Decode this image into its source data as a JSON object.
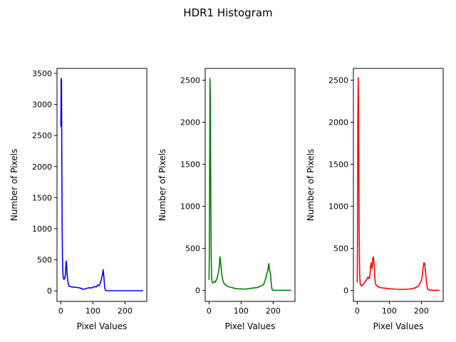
{
  "figure": {
    "title": "HDR1 Histogram"
  },
  "chart_data": [
    {
      "type": "line",
      "xlabel": "Pixel Values",
      "ylabel": "Number of Pixels",
      "xlim": [
        -12,
        268
      ],
      "ylim": [
        -170,
        3580
      ],
      "xticks": [
        0,
        100,
        200
      ],
      "yticks": [
        0,
        500,
        1000,
        1500,
        2000,
        2500,
        3000,
        3500
      ],
      "grid": false,
      "color": "#0000ff",
      "series": [
        {
          "x": [
            0,
            1,
            2,
            3,
            4,
            5,
            6,
            7,
            8,
            10,
            12,
            14,
            16,
            17,
            18,
            19,
            20,
            22,
            24,
            26,
            28,
            30,
            32,
            35,
            40,
            45,
            50,
            55,
            60,
            65,
            70,
            75,
            80,
            85,
            90,
            95,
            100,
            105,
            110,
            115,
            118,
            121,
            124,
            127,
            130,
            132,
            134,
            136,
            138,
            140,
            145,
            150,
            160,
            180,
            200,
            220,
            240,
            255
          ],
          "y": [
            2650,
            3420,
            3380,
            2200,
            1100,
            560,
            340,
            240,
            200,
            185,
            200,
            260,
            440,
            480,
            420,
            320,
            240,
            150,
            100,
            75,
            70,
            72,
            65,
            62,
            60,
            58,
            55,
            50,
            45,
            35,
            25,
            30,
            40,
            45,
            50,
            45,
            55,
            70,
            60,
            95,
            80,
            100,
            140,
            200,
            260,
            340,
            240,
            100,
            20,
            5,
            2,
            2,
            2,
            2,
            2,
            2,
            2,
            2
          ]
        }
      ]
    },
    {
      "type": "line",
      "xlabel": "Pixel Values",
      "ylabel": "Number of Pixels",
      "xlim": [
        -12,
        268
      ],
      "ylim": [
        -130,
        2640
      ],
      "xticks": [
        0,
        100,
        200
      ],
      "yticks": [
        0,
        500,
        1000,
        1500,
        2000,
        2500
      ],
      "grid": false,
      "color": "#008000",
      "series": [
        {
          "x": [
            0,
            1,
            2,
            3,
            4,
            5,
            6,
            7,
            8,
            9,
            10,
            12,
            14,
            16,
            18,
            20,
            22,
            24,
            26,
            28,
            30,
            32,
            34,
            36,
            38,
            40,
            42,
            44,
            46,
            48,
            50,
            55,
            60,
            70,
            80,
            90,
            100,
            110,
            120,
            130,
            140,
            150,
            160,
            165,
            170,
            175,
            180,
            183,
            185,
            187,
            188,
            190,
            192,
            194,
            196,
            198,
            200,
            205,
            210,
            220,
            240,
            255
          ],
          "y": [
            130,
            500,
            1500,
            2520,
            2300,
            1500,
            800,
            350,
            180,
            110,
            95,
            90,
            95,
            100,
            110,
            100,
            120,
            130,
            160,
            190,
            230,
            290,
            400,
            350,
            250,
            180,
            140,
            110,
            90,
            80,
            70,
            55,
            45,
            35,
            25,
            20,
            18,
            15,
            20,
            25,
            30,
            35,
            50,
            60,
            70,
            120,
            200,
            230,
            290,
            320,
            250,
            230,
            180,
            80,
            20,
            5,
            2,
            2,
            2,
            2,
            2,
            2
          ]
        }
      ]
    },
    {
      "type": "line",
      "xlabel": "Pixel Values",
      "ylabel": "Number of Pixels",
      "xlim": [
        -12,
        268
      ],
      "ylim": [
        -130,
        2640
      ],
      "xticks": [
        0,
        100,
        200
      ],
      "yticks": [
        0,
        500,
        1000,
        1500,
        2000,
        2500
      ],
      "grid": false,
      "color": "#ff0000",
      "series": [
        {
          "x": [
            0,
            1,
            2,
            3,
            4,
            5,
            6,
            7,
            8,
            9,
            10,
            12,
            14,
            16,
            18,
            20,
            22,
            24,
            26,
            28,
            30,
            32,
            34,
            36,
            38,
            40,
            42,
            44,
            45,
            46,
            47,
            48,
            50,
            52,
            54,
            56,
            58,
            60,
            65,
            70,
            80,
            90,
            100,
            110,
            120,
            140,
            160,
            170,
            180,
            190,
            195,
            200,
            203,
            205,
            207,
            208,
            210,
            212,
            214,
            216,
            218,
            220,
            225,
            230,
            240,
            255
          ],
          "y": [
            100,
            900,
            2100,
            2530,
            2200,
            1400,
            700,
            300,
            150,
            90,
            70,
            60,
            55,
            60,
            70,
            80,
            90,
            100,
            110,
            120,
            130,
            150,
            160,
            140,
            150,
            200,
            300,
            330,
            280,
            260,
            300,
            380,
            400,
            350,
            200,
            100,
            70,
            60,
            45,
            35,
            30,
            25,
            20,
            18,
            15,
            12,
            15,
            20,
            30,
            50,
            80,
            120,
            180,
            260,
            310,
            330,
            320,
            260,
            180,
            100,
            40,
            15,
            5,
            2,
            2,
            2
          ]
        }
      ]
    }
  ]
}
